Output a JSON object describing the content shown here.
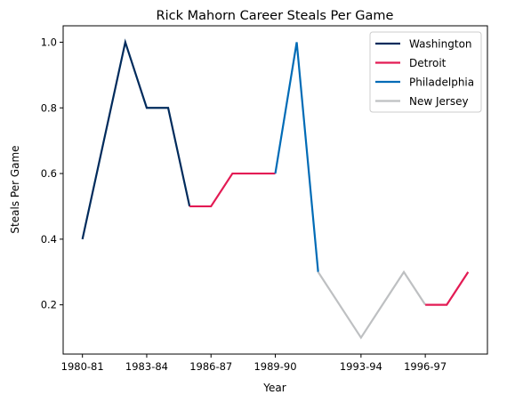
{
  "chart_data": {
    "type": "line",
    "title": "Rick Mahorn Career Steals Per Game",
    "xlabel": "Year",
    "ylabel": "Steals Per Game",
    "xticks": [
      "1980-81",
      "1983-84",
      "1986-87",
      "1989-90",
      "1993-94",
      "1996-97"
    ],
    "yticks": [
      "0.2",
      "0.4",
      "0.6",
      "0.8",
      "1.0"
    ],
    "ylim": [
      0.05,
      1.05
    ],
    "grid": false,
    "legend_position": "top-right",
    "series": [
      {
        "name": "Washington",
        "color": "#002B5C",
        "points": [
          {
            "season": "1980-81",
            "value": 0.4
          },
          {
            "season": "1981-82",
            "value": 0.7
          },
          {
            "season": "1982-83",
            "value": 1.0
          },
          {
            "season": "1983-84",
            "value": 0.8
          },
          {
            "season": "1984-85",
            "value": 0.8
          },
          {
            "season": "1985-86",
            "value": 0.5
          }
        ]
      },
      {
        "name": "Detroit",
        "color": "#E31B54",
        "points": [
          {
            "season": "1985-86",
            "value": 0.5
          },
          {
            "season": "1986-87",
            "value": 0.5
          },
          {
            "season": "1987-88",
            "value": 0.6
          },
          {
            "season": "1988-89",
            "value": 0.6
          },
          {
            "season": "1989-90",
            "value": 0.6
          }
        ]
      },
      {
        "name": "Philadelphia",
        "color": "#006BB6",
        "points": [
          {
            "season": "1989-90",
            "value": 0.6
          },
          {
            "season": "1990-91",
            "value": 1.0
          },
          {
            "season": "1991-92",
            "value": 0.3
          }
        ]
      },
      {
        "name": "New Jersey",
        "color": "#BEC0C2",
        "points": [
          {
            "season": "1991-92",
            "value": 0.3
          },
          {
            "season": "1993-94",
            "value": 0.1
          },
          {
            "season": "1994-95",
            "value": 0.2
          },
          {
            "season": "1995-96",
            "value": 0.3
          },
          {
            "season": "1996-97",
            "value": 0.2
          }
        ]
      },
      {
        "name": "",
        "color": "#E31B54",
        "points": [
          {
            "season": "1996-97",
            "value": 0.2
          },
          {
            "season": "1997-98",
            "value": 0.2
          },
          {
            "season": "1998-99",
            "value": 0.3
          }
        ]
      }
    ]
  }
}
